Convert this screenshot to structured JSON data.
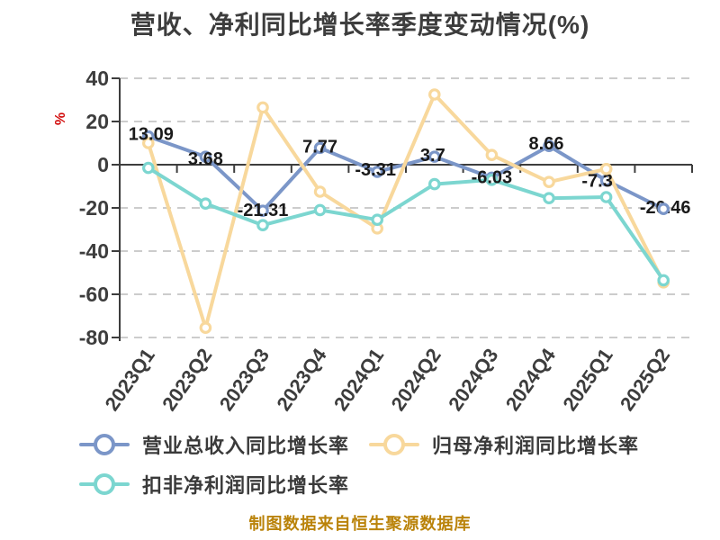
{
  "title": "营收、净利同比增长率季度变动情况(%)",
  "y_axis_unit": "%",
  "footer": "制图数据来自恒生聚源数据库",
  "colors": {
    "title": "#3d3d3d",
    "axis": "#3d3d3d",
    "grid": "#cccccc",
    "point_label": "#1a1a1a",
    "unit": "#d20a0a",
    "footer": "#ba830a",
    "marker_fill": "#ffffff"
  },
  "chart_data": {
    "type": "line",
    "title": "营收、净利同比增长率季度变动情况(%)",
    "ylabel": "%",
    "categories": [
      "2023Q1",
      "2023Q2",
      "2023Q3",
      "2023Q4",
      "2024Q1",
      "2024Q2",
      "2024Q3",
      "2024Q4",
      "2025Q1",
      "2025Q2"
    ],
    "series": [
      {
        "key": "revenue-yoy",
        "name": "营业总收入同比增长率",
        "color": "#7b96c8",
        "values": [
          13.09,
          3.68,
          -21.31,
          7.77,
          -3.31,
          3.7,
          -6.03,
          8.66,
          -7.3,
          -20.46
        ],
        "point_labels": [
          "13.09",
          "3.68",
          "-21.31",
          "7.77",
          "-3.31",
          "3.7",
          "-6.03",
          "8.66",
          "-7.3",
          "-20.46"
        ]
      },
      {
        "key": "parent-net-profit-yoy",
        "name": "归母净利润同比增长率",
        "color": "#f8d89c",
        "values": [
          10,
          -75.5,
          26.5,
          -12.5,
          -29.5,
          32.5,
          4.5,
          -8,
          -2,
          -54.5
        ]
      },
      {
        "key": "nongaap-net-profit-yoy",
        "name": "扣非净利润同比增长率",
        "color": "#7cd6d0",
        "values": [
          -1.5,
          -18,
          -28,
          -21,
          -25.5,
          -9,
          -7,
          -15.5,
          -15,
          -53.5
        ]
      }
    ],
    "y_ticks": [
      40,
      20,
      0,
      -20,
      -40,
      -60,
      -80
    ],
    "ylim": [
      -80,
      40
    ],
    "grid": true,
    "zero_axis": true,
    "legend_position": "bottom"
  }
}
